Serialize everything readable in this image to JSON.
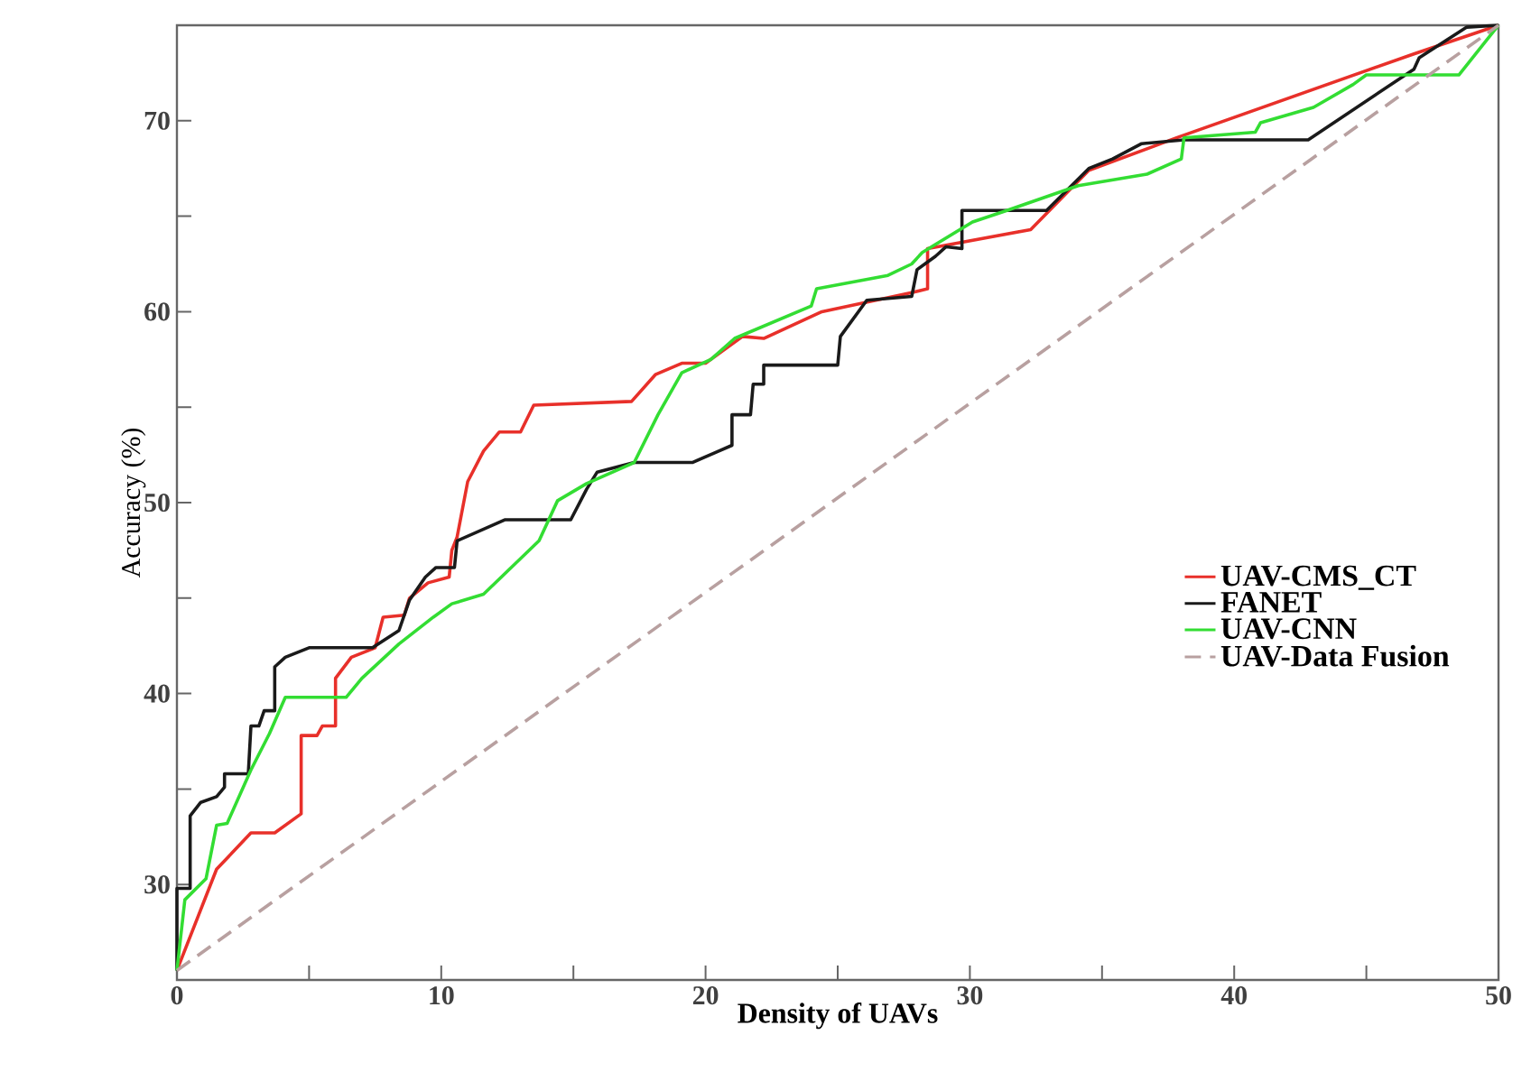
{
  "chart_data": {
    "type": "line",
    "xlabel": "Density of UAVs",
    "ylabel": "Accuracy (%)",
    "xlim": [
      0,
      50
    ],
    "ylim": [
      25,
      75
    ],
    "xticks": [
      0,
      {
        "value": 5,
        "label": null
      },
      10,
      {
        "value": 15,
        "label": null
      },
      20,
      {
        "value": 25,
        "label": null
      },
      30,
      {
        "value": 35,
        "label": null
      },
      40,
      {
        "value": 45,
        "label": null
      },
      50
    ],
    "yticks": [
      30,
      {
        "value": 35,
        "label": null
      },
      40,
      {
        "value": 45,
        "label": null
      },
      50,
      {
        "value": 55,
        "label": null
      },
      60,
      {
        "value": 65,
        "label": null
      },
      70
    ],
    "legend": "right",
    "series": [
      {
        "name": "UAV-CMS_CT",
        "color": "#e8302a",
        "x": [
          0,
          1.5,
          2.8,
          3.7,
          4.7,
          4.7,
          5.3,
          5.5,
          6.0,
          6.0,
          6.6,
          7.5,
          7.8,
          8.6,
          8.8,
          9.5,
          10.3,
          10.4,
          10.6,
          11.0,
          11.6,
          12.2,
          13.0,
          13.5,
          17.2,
          18.1,
          19.1,
          20.0,
          21.4,
          22.2,
          24.4,
          27.8,
          28.4,
          28.4,
          32.3,
          34.5,
          37.8,
          46.8,
          50
        ],
        "values": [
          25.5,
          30.8,
          32.7,
          32.7,
          33.7,
          37.8,
          37.8,
          38.3,
          38.3,
          40.8,
          41.9,
          42.4,
          44.0,
          44.1,
          45.0,
          45.8,
          46.1,
          47.5,
          48.2,
          51.1,
          52.7,
          53.7,
          53.7,
          55.1,
          55.3,
          56.7,
          57.3,
          57.3,
          58.7,
          58.6,
          60.0,
          61.0,
          61.2,
          63.3,
          64.3,
          67.4,
          69.1,
          73.5,
          75
        ]
      },
      {
        "name": "FANET",
        "color": "#1a1a1a",
        "x": [
          0,
          0,
          0.5,
          0.5,
          0.9,
          1.5,
          1.8,
          1.8,
          2.7,
          2.8,
          3.1,
          3.3,
          3.7,
          3.7,
          4.1,
          5.0,
          7.4,
          8.4,
          8.8,
          9.4,
          9.8,
          10.5,
          10.6,
          12.4,
          14.9,
          15.5,
          15.9,
          17.3,
          19.5,
          20.5,
          21.0,
          21.0,
          21.7,
          21.8,
          22.2,
          22.2,
          25.0,
          25.1,
          26.1,
          27.8,
          28.0,
          28.7,
          29.1,
          29.7,
          29.7,
          32.9,
          34.5,
          35.4,
          36.5,
          38.1,
          42.8,
          46.8,
          47.0,
          48.8,
          50
        ],
        "values": [
          25.5,
          29.8,
          29.8,
          33.6,
          34.3,
          34.6,
          35.1,
          35.8,
          35.8,
          38.3,
          38.3,
          39.1,
          39.1,
          41.4,
          41.9,
          42.4,
          42.4,
          43.3,
          44.9,
          46.1,
          46.6,
          46.6,
          48.0,
          49.1,
          49.1,
          50.7,
          51.6,
          52.1,
          52.1,
          52.7,
          53.0,
          54.6,
          54.6,
          56.2,
          56.2,
          57.2,
          57.2,
          58.7,
          60.6,
          60.8,
          62.2,
          62.9,
          63.4,
          63.3,
          65.3,
          65.3,
          67.5,
          68.0,
          68.8,
          69.0,
          69.0,
          72.7,
          73.3,
          74.9,
          75
        ]
      },
      {
        "name": "UAV-CNN",
        "color": "#33dd33",
        "x": [
          0,
          0.3,
          1.1,
          1.5,
          1.9,
          2.8,
          3.5,
          4.1,
          6.4,
          7.0,
          8.4,
          9.7,
          10.4,
          11.6,
          13.7,
          14.4,
          15.5,
          17.3,
          18.2,
          19.1,
          20.2,
          21.1,
          24.0,
          24.2,
          26.9,
          27.8,
          28.2,
          30.1,
          31.4,
          34.1,
          36.7,
          38.0,
          38.1,
          40.8,
          41.0,
          43.0,
          44.5,
          45.0,
          46.5,
          48.5,
          50
        ],
        "values": [
          25.5,
          29.2,
          30.3,
          33.1,
          33.2,
          36.0,
          37.9,
          39.8,
          39.8,
          40.8,
          42.6,
          44.0,
          44.7,
          45.2,
          48.0,
          50.1,
          51.0,
          52.1,
          54.6,
          56.8,
          57.5,
          58.6,
          60.3,
          61.2,
          61.9,
          62.5,
          63.1,
          64.7,
          65.3,
          66.6,
          67.2,
          68.0,
          69.1,
          69.4,
          69.9,
          70.7,
          71.9,
          72.4,
          72.4,
          72.4,
          75
        ]
      },
      {
        "name": "UAV-Data Fusion",
        "color": "#b8a0a0",
        "line_style": "dashed",
        "x": [
          0,
          50
        ],
        "values": [
          25.5,
          75
        ]
      }
    ]
  }
}
